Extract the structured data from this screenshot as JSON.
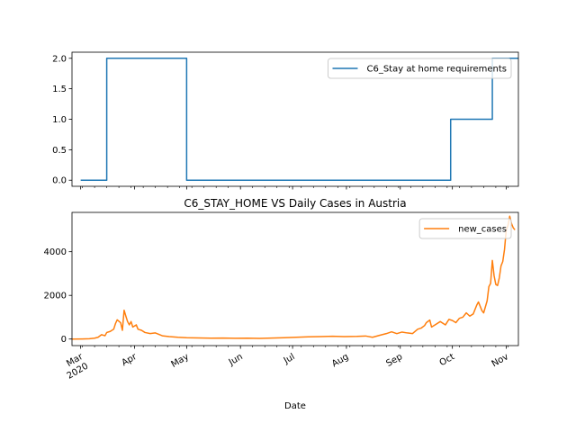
{
  "chart_data": [
    {
      "type": "line",
      "title": "",
      "xlabel": "",
      "ylabel": "",
      "ylim": [
        -0.1,
        2.1
      ],
      "yticks": [
        0.0,
        0.5,
        1.0,
        1.5,
        2.0
      ],
      "ytick_labels": [
        "0.0",
        "0.5",
        "1.0",
        "1.5",
        "2.0"
      ],
      "legend_position": "upper right",
      "grid": false,
      "series": [
        {
          "name": "C6_Stay at home requirements",
          "color": "#1f77b4",
          "step_points": [
            [
              "2020-03-01",
              0
            ],
            [
              "2020-03-16",
              0
            ],
            [
              "2020-03-16",
              2
            ],
            [
              "2020-05-01",
              2
            ],
            [
              "2020-05-01",
              0
            ],
            [
              "2020-09-30",
              0
            ],
            [
              "2020-09-30",
              1
            ],
            [
              "2020-10-24",
              1
            ],
            [
              "2020-10-24",
              2
            ],
            [
              "2020-11-08",
              2
            ]
          ]
        }
      ]
    },
    {
      "type": "line",
      "title": "C6_STAY_HOME VS Daily Cases in Austria",
      "xlabel": "Date",
      "ylabel": "",
      "ylim": [
        -300,
        5800
      ],
      "yticks": [
        0,
        2000,
        4000
      ],
      "ytick_labels": [
        "0",
        "2000",
        "4000"
      ],
      "xlim": [
        "2020-02-25",
        "2020-11-08"
      ],
      "xtick_labels": [
        "Mar\n2020",
        "Apr",
        "May",
        "Jun",
        "Jul",
        "Aug",
        "Sep",
        "Oct",
        "Nov"
      ],
      "xtick_dates": [
        "2020-03-01",
        "2020-04-01",
        "2020-05-01",
        "2020-06-01",
        "2020-07-01",
        "2020-08-01",
        "2020-09-01",
        "2020-10-01",
        "2020-11-01"
      ],
      "legend_position": "upper right",
      "grid": false,
      "series": [
        {
          "name": "new_cases",
          "color": "#ff7f0e",
          "points": [
            [
              "2020-02-25",
              0
            ],
            [
              "2020-03-02",
              5
            ],
            [
              "2020-03-06",
              15
            ],
            [
              "2020-03-09",
              40
            ],
            [
              "2020-03-11",
              80
            ],
            [
              "2020-03-13",
              200
            ],
            [
              "2020-03-15",
              150
            ],
            [
              "2020-03-16",
              300
            ],
            [
              "2020-03-18",
              350
            ],
            [
              "2020-03-20",
              450
            ],
            [
              "2020-03-21",
              700
            ],
            [
              "2020-03-22",
              880
            ],
            [
              "2020-03-24",
              750
            ],
            [
              "2020-03-25",
              400
            ],
            [
              "2020-03-26",
              1320
            ],
            [
              "2020-03-27",
              1050
            ],
            [
              "2020-03-28",
              800
            ],
            [
              "2020-03-29",
              650
            ],
            [
              "2020-03-30",
              800
            ],
            [
              "2020-03-31",
              550
            ],
            [
              "2020-04-02",
              650
            ],
            [
              "2020-04-03",
              450
            ],
            [
              "2020-04-05",
              400
            ],
            [
              "2020-04-07",
              300
            ],
            [
              "2020-04-10",
              250
            ],
            [
              "2020-04-13",
              280
            ],
            [
              "2020-04-17",
              150
            ],
            [
              "2020-04-21",
              110
            ],
            [
              "2020-04-26",
              80
            ],
            [
              "2020-05-01",
              60
            ],
            [
              "2020-05-08",
              50
            ],
            [
              "2020-05-15",
              40
            ],
            [
              "2020-05-22",
              45
            ],
            [
              "2020-05-29",
              35
            ],
            [
              "2020-06-05",
              40
            ],
            [
              "2020-06-12",
              30
            ],
            [
              "2020-06-19",
              45
            ],
            [
              "2020-06-26",
              60
            ],
            [
              "2020-07-03",
              80
            ],
            [
              "2020-07-10",
              100
            ],
            [
              "2020-07-17",
              110
            ],
            [
              "2020-07-24",
              130
            ],
            [
              "2020-07-31",
              110
            ],
            [
              "2020-08-07",
              120
            ],
            [
              "2020-08-12",
              140
            ],
            [
              "2020-08-16",
              80
            ],
            [
              "2020-08-20",
              170
            ],
            [
              "2020-08-24",
              250
            ],
            [
              "2020-08-27",
              330
            ],
            [
              "2020-08-30",
              250
            ],
            [
              "2020-09-02",
              320
            ],
            [
              "2020-09-05",
              280
            ],
            [
              "2020-09-08",
              250
            ],
            [
              "2020-09-11",
              450
            ],
            [
              "2020-09-13",
              500
            ],
            [
              "2020-09-15",
              620
            ],
            [
              "2020-09-16",
              750
            ],
            [
              "2020-09-18",
              869
            ],
            [
              "2020-09-19",
              550
            ],
            [
              "2020-09-21",
              650
            ],
            [
              "2020-09-24",
              800
            ],
            [
              "2020-09-27",
              650
            ],
            [
              "2020-09-29",
              900
            ],
            [
              "2020-10-01",
              850
            ],
            [
              "2020-10-03",
              750
            ],
            [
              "2020-10-05",
              950
            ],
            [
              "2020-10-07",
              1000
            ],
            [
              "2020-10-09",
              1200
            ],
            [
              "2020-10-11",
              1050
            ],
            [
              "2020-10-13",
              1150
            ],
            [
              "2020-10-15",
              1550
            ],
            [
              "2020-10-16",
              1700
            ],
            [
              "2020-10-18",
              1300
            ],
            [
              "2020-10-19",
              1200
            ],
            [
              "2020-10-21",
              1750
            ],
            [
              "2020-10-22",
              2400
            ],
            [
              "2020-10-23",
              2550
            ],
            [
              "2020-10-24",
              3600
            ],
            [
              "2020-10-25",
              2900
            ],
            [
              "2020-10-26",
              2500
            ],
            [
              "2020-10-27",
              2450
            ],
            [
              "2020-10-28",
              2800
            ],
            [
              "2020-10-29",
              3350
            ],
            [
              "2020-10-30",
              3550
            ],
            [
              "2020-10-31",
              4100
            ],
            [
              "2020-11-01",
              5000
            ],
            [
              "2020-11-02",
              5200
            ],
            [
              "2020-11-03",
              5627
            ],
            [
              "2020-11-04",
              5300
            ],
            [
              "2020-11-05",
              5100
            ],
            [
              "2020-11-06",
              5000
            ]
          ]
        }
      ]
    }
  ],
  "colors": {
    "axes": "#000000",
    "background": "#ffffff"
  }
}
